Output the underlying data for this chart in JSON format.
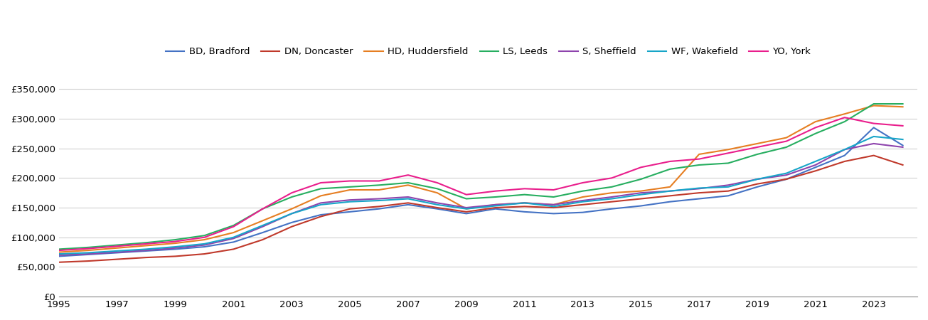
{
  "series": {
    "BD, Bradford": {
      "color": "#4472C4",
      "data": {
        "1995": 68000,
        "1996": 71000,
        "1997": 74000,
        "1998": 77000,
        "1999": 80000,
        "2000": 84000,
        "2001": 92000,
        "2002": 108000,
        "2003": 125000,
        "2004": 138000,
        "2005": 143000,
        "2006": 148000,
        "2007": 155000,
        "2008": 148000,
        "2009": 140000,
        "2010": 148000,
        "2011": 143000,
        "2012": 140000,
        "2013": 142000,
        "2014": 148000,
        "2015": 153000,
        "2016": 160000,
        "2017": 165000,
        "2018": 170000,
        "2019": 185000,
        "2020": 198000,
        "2021": 218000,
        "2022": 238000,
        "2023": 285000,
        "2024": 255000
      }
    },
    "DN, Doncaster": {
      "color": "#C0392B",
      "data": {
        "1995": 58000,
        "1996": 60000,
        "1997": 63000,
        "1998": 66000,
        "1999": 68000,
        "2000": 72000,
        "2001": 80000,
        "2002": 96000,
        "2003": 118000,
        "2004": 135000,
        "2005": 148000,
        "2006": 152000,
        "2007": 158000,
        "2008": 150000,
        "2009": 143000,
        "2010": 150000,
        "2011": 152000,
        "2012": 150000,
        "2013": 155000,
        "2014": 160000,
        "2015": 165000,
        "2016": 170000,
        "2017": 175000,
        "2018": 178000,
        "2019": 190000,
        "2020": 198000,
        "2021": 212000,
        "2022": 228000,
        "2023": 238000,
        "2024": 222000
      }
    },
    "HD, Huddersfield": {
      "color": "#E67E22",
      "data": {
        "1995": 75000,
        "1996": 78000,
        "1997": 82000,
        "1998": 86000,
        "1999": 90000,
        "2000": 96000,
        "2001": 108000,
        "2002": 128000,
        "2003": 148000,
        "2004": 170000,
        "2005": 180000,
        "2006": 180000,
        "2007": 188000,
        "2008": 175000,
        "2009": 148000,
        "2010": 155000,
        "2011": 158000,
        "2012": 155000,
        "2013": 168000,
        "2014": 175000,
        "2015": 178000,
        "2016": 185000,
        "2017": 240000,
        "2018": 248000,
        "2019": 258000,
        "2020": 268000,
        "2021": 295000,
        "2022": 308000,
        "2023": 322000,
        "2024": 320000
      }
    },
    "LS, Leeds": {
      "color": "#27AE60",
      "data": {
        "1995": 80000,
        "1996": 83000,
        "1997": 87000,
        "1998": 91000,
        "1999": 96000,
        "2000": 103000,
        "2001": 120000,
        "2002": 148000,
        "2003": 168000,
        "2004": 182000,
        "2005": 185000,
        "2006": 188000,
        "2007": 192000,
        "2008": 182000,
        "2009": 165000,
        "2010": 168000,
        "2011": 172000,
        "2012": 168000,
        "2013": 178000,
        "2014": 185000,
        "2015": 198000,
        "2016": 215000,
        "2017": 222000,
        "2018": 225000,
        "2019": 240000,
        "2020": 252000,
        "2021": 275000,
        "2022": 295000,
        "2023": 325000,
        "2024": 325000
      }
    },
    "S, Sheffield": {
      "color": "#8E44AD",
      "data": {
        "1995": 70000,
        "1996": 72000,
        "1997": 75000,
        "1998": 78000,
        "1999": 82000,
        "2000": 87000,
        "2001": 98000,
        "2002": 118000,
        "2003": 140000,
        "2004": 158000,
        "2005": 163000,
        "2006": 165000,
        "2007": 168000,
        "2008": 158000,
        "2009": 150000,
        "2010": 155000,
        "2011": 158000,
        "2012": 155000,
        "2013": 162000,
        "2014": 168000,
        "2015": 175000,
        "2016": 178000,
        "2017": 182000,
        "2018": 188000,
        "2019": 198000,
        "2020": 205000,
        "2021": 222000,
        "2022": 248000,
        "2023": 258000,
        "2024": 252000
      }
    },
    "WF, Wakefield": {
      "color": "#17A5C8",
      "data": {
        "1995": 72000,
        "1996": 74000,
        "1997": 77000,
        "1998": 80000,
        "1999": 84000,
        "2000": 89000,
        "2001": 100000,
        "2002": 120000,
        "2003": 140000,
        "2004": 155000,
        "2005": 160000,
        "2006": 162000,
        "2007": 165000,
        "2008": 155000,
        "2009": 148000,
        "2010": 153000,
        "2011": 158000,
        "2012": 152000,
        "2013": 160000,
        "2014": 165000,
        "2015": 172000,
        "2016": 178000,
        "2017": 183000,
        "2018": 185000,
        "2019": 198000,
        "2020": 208000,
        "2021": 228000,
        "2022": 248000,
        "2023": 270000,
        "2024": 265000
      }
    },
    "YO, York": {
      "color": "#E91E8C",
      "data": {
        "1995": 78000,
        "1996": 81000,
        "1997": 85000,
        "1998": 89000,
        "1999": 93000,
        "2000": 100000,
        "2001": 118000,
        "2002": 148000,
        "2003": 175000,
        "2004": 192000,
        "2005": 195000,
        "2006": 195000,
        "2007": 205000,
        "2008": 192000,
        "2009": 172000,
        "2010": 178000,
        "2011": 182000,
        "2012": 180000,
        "2013": 192000,
        "2014": 200000,
        "2015": 218000,
        "2016": 228000,
        "2017": 232000,
        "2018": 242000,
        "2019": 252000,
        "2020": 262000,
        "2021": 285000,
        "2022": 302000,
        "2023": 292000,
        "2024": 288000
      }
    }
  },
  "ylim": [
    0,
    375000
  ],
  "yticks": [
    0,
    50000,
    100000,
    150000,
    200000,
    250000,
    300000,
    350000
  ],
  "xlim_start": 1995,
  "xlim_end": 2024.5,
  "xticks": [
    1995,
    1997,
    1999,
    2001,
    2003,
    2005,
    2007,
    2009,
    2011,
    2013,
    2015,
    2017,
    2019,
    2021,
    2023
  ],
  "background_color": "#ffffff",
  "grid_color": "#d0d0d0",
  "linewidth": 1.5
}
